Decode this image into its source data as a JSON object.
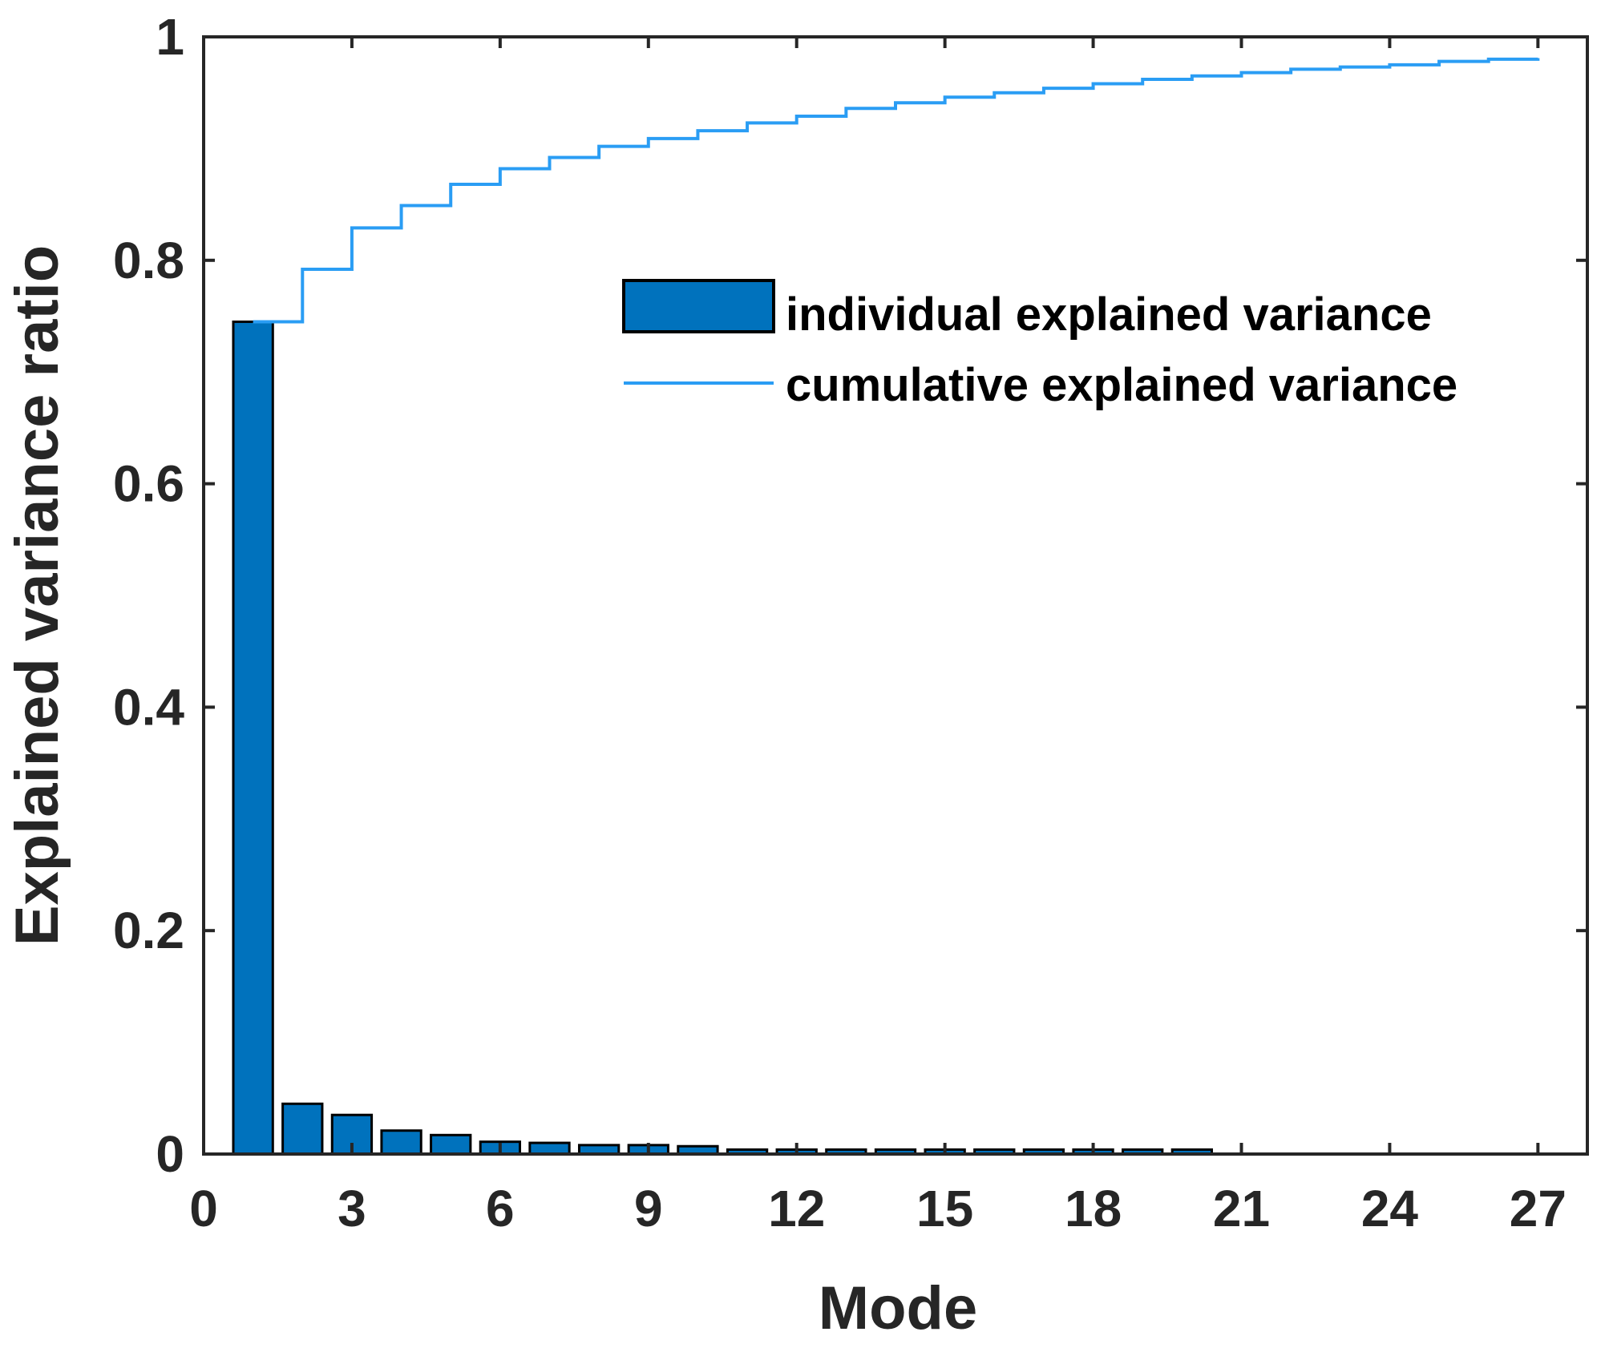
{
  "chart_data": {
    "type": "bar",
    "title": "",
    "xlabel": "Mode",
    "ylabel": "Explained variance ratio",
    "xlim": [
      0,
      28
    ],
    "ylim": [
      0,
      1
    ],
    "xticks": [
      0,
      3,
      6,
      9,
      12,
      15,
      18,
      21,
      24,
      27
    ],
    "xtick_labels": [
      "0",
      "3",
      "6",
      "9",
      "12",
      "15",
      "18",
      "21",
      "24",
      "27"
    ],
    "yticks": [
      0,
      0.2,
      0.4,
      0.6,
      0.8,
      1
    ],
    "ytick_labels": [
      "0",
      "0.2",
      "0.4",
      "0.6",
      "0.8",
      "1"
    ],
    "grid": false,
    "legend_position": "upper-right",
    "series": [
      {
        "name": "individual explained variance",
        "type": "bar",
        "color": "#0072BD",
        "x": [
          1,
          2,
          3,
          4,
          5,
          6,
          7,
          8,
          9,
          10,
          11,
          12,
          13,
          14,
          15,
          16,
          17,
          18,
          19,
          20
        ],
        "values": [
          0.745,
          0.045,
          0.035,
          0.021,
          0.017,
          0.011,
          0.01,
          0.008,
          0.008,
          0.007,
          0.004,
          0.004,
          0.004,
          0.004,
          0.004,
          0.004,
          0.004,
          0.004,
          0.004,
          0.004
        ]
      },
      {
        "name": "cumulative explained variance",
        "type": "step",
        "color": "#2A9DF4",
        "x": [
          1,
          2,
          3,
          4,
          5,
          6,
          7,
          8,
          9,
          10,
          11,
          12,
          13,
          14,
          15,
          16,
          17,
          18,
          19,
          20,
          21,
          22,
          23,
          24,
          25,
          26,
          27
        ],
        "values": [
          0.745,
          0.792,
          0.829,
          0.849,
          0.868,
          0.882,
          0.892,
          0.902,
          0.909,
          0.916,
          0.923,
          0.929,
          0.936,
          0.941,
          0.946,
          0.95,
          0.954,
          0.958,
          0.962,
          0.965,
          0.968,
          0.971,
          0.973,
          0.975,
          0.978,
          0.98,
          0.981
        ]
      }
    ]
  }
}
